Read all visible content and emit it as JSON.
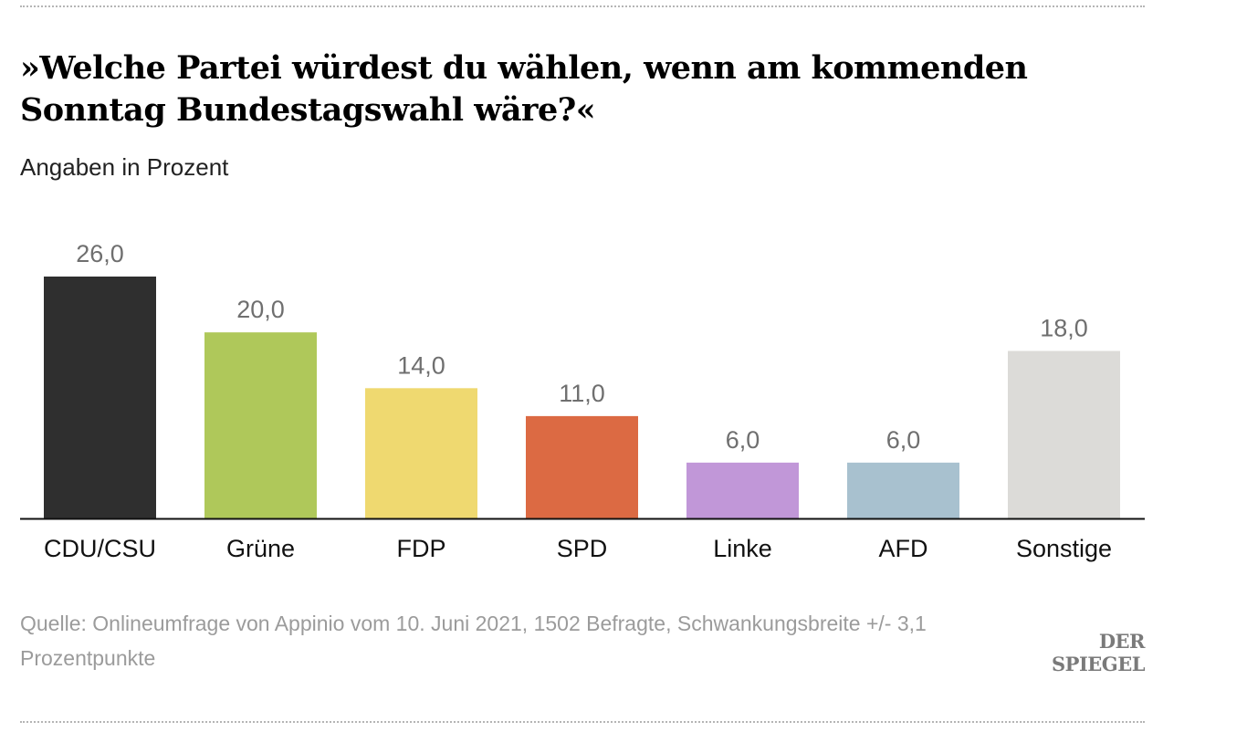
{
  "chart_data": {
    "type": "bar",
    "title": "»Welche Partei würdest du wählen, wenn am kommenden Sonntag Bundestagswahl wäre?«",
    "subtitle": "Angaben in Prozent",
    "categories": [
      "CDU/CSU",
      "Grüne",
      "FDP",
      "SPD",
      "Linke",
      "AFD",
      "Sonstige"
    ],
    "values": [
      26.0,
      20.0,
      14.0,
      11.0,
      6.0,
      6.0,
      18.0
    ],
    "value_labels": [
      "26,0",
      "20,0",
      "14,0",
      "11,0",
      "6,0",
      "6,0",
      "18,0"
    ],
    "colors": [
      "#2f2f2f",
      "#afc85a",
      "#efd970",
      "#dc6a43",
      "#c197d8",
      "#a8c1cf",
      "#dcdbd8"
    ],
    "ylim": [
      0,
      26
    ],
    "xlabel": "",
    "ylabel": "",
    "grid": false
  },
  "footer": {
    "source": "Quelle: Onlineumfrage von Appinio vom 10. Juni 2021, 1502 Befragte, Schwankungsbreite +/- 3,1 Prozentpunkte",
    "logo": "DER SPIEGEL"
  },
  "colors": {
    "axis": "#111111",
    "value_label": "#6f6f6f",
    "category_label": "#111111"
  }
}
